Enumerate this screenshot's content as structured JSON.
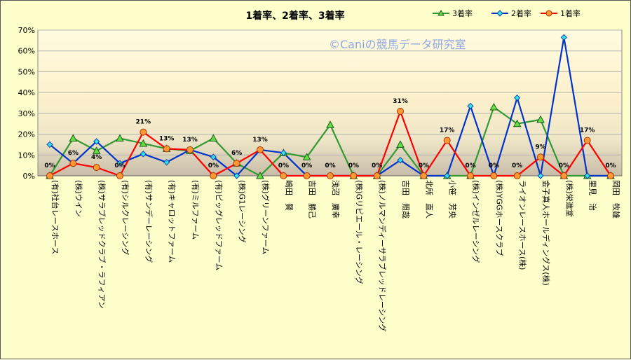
{
  "chart_data": {
    "type": "line",
    "title": "1着率、2着率、3着率",
    "watermark": "©Caniの競馬データ研究室",
    "ylim": [
      0,
      0.7
    ],
    "yticks": [
      "0%",
      "10%",
      "20%",
      "30%",
      "40%",
      "50%",
      "60%",
      "70%"
    ],
    "ytick_values": [
      0,
      0.1,
      0.2,
      0.3,
      0.4,
      0.5,
      0.6,
      0.7
    ],
    "grid": true,
    "legend_position": "top-right",
    "categories": [
      "(有)社台レースホース",
      "(株)ウイン",
      "(株)サラブレッドクラブ・ラフィアン",
      "(有)シルクレーシング",
      "(有)サンデーレーシング",
      "(有)キャロットファーム",
      "(有)ミルファーム",
      "(有)ビッグレッドファーム",
      "(株)G1レーシング",
      "(株)グリーンファーム",
      "嶋田　賢",
      "吉田　勝己",
      "浅沼　廣幸",
      "(株)Gリビエール・レーシング",
      "(株)ノルマンディーサラブレッドレーシング",
      "吉田　照哉",
      "北所　直人",
      "小笹　芳央",
      "(株)インゼルレーシング",
      "(株)YGGホースクラブ",
      "ライオンレースホース(株)",
      "金子真人ホールディングス(株)",
      "(株)栄進堂",
      "里見　治",
      "岡田　牧雄"
    ],
    "series": [
      {
        "name": "3着率",
        "color": "#339933",
        "marker": "triangle",
        "values": [
          0,
          0.18,
          0.12,
          0.18,
          0.155,
          0.13,
          0.12,
          0.18,
          0.06,
          0,
          0.11,
          0.09,
          0.245,
          0,
          0,
          0.15,
          0,
          0,
          0,
          0.33,
          0.25,
          0.27,
          0,
          0,
          0
        ]
      },
      {
        "name": "2着率",
        "color": "#0033cc",
        "marker": "diamond",
        "values": [
          0.15,
          0.06,
          0.165,
          0.06,
          0.105,
          0.065,
          0.125,
          0.09,
          0,
          0.125,
          0.11,
          0,
          0,
          0,
          0,
          0.075,
          0,
          0,
          0.335,
          0,
          0.375,
          0,
          0.665,
          0,
          0
        ]
      },
      {
        "name": "1着率",
        "color": "#ff0000",
        "marker": "circle",
        "values": [
          0,
          0.06,
          0.04,
          0,
          0.21,
          0.13,
          0.125,
          0,
          0.06,
          0.125,
          0,
          0,
          0,
          0,
          0,
          0.31,
          0,
          0.17,
          0,
          0,
          0,
          0.09,
          0,
          0.17,
          0
        ]
      }
    ],
    "data_labels": [
      "0%",
      "6%",
      "4%",
      "0%",
      "21%",
      "13%",
      "13%",
      "0%",
      "6%",
      "13%",
      "0%",
      "0%",
      "0%",
      "0%",
      "0%",
      "31%",
      "0%",
      "17%",
      "0%",
      "0%",
      "0%",
      "9%",
      "0%",
      "17%",
      "0%"
    ]
  }
}
